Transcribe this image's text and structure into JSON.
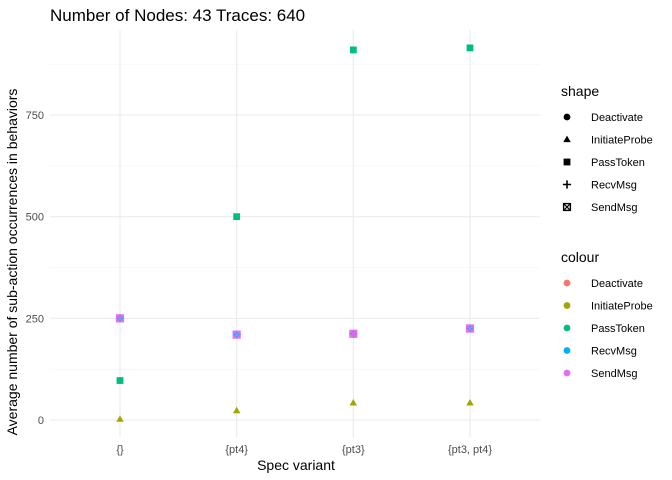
{
  "chart_data": {
    "type": "scatter",
    "title": "Number of Nodes:  43  Traces: 640",
    "xlabel": "Spec variant",
    "ylabel": "Average number of sub-action occurrences in behaviors",
    "categories": [
      "{}",
      "{pt4}",
      "{pt3}",
      "{pt3, pt4}"
    ],
    "ylim": [
      -45,
      950
    ],
    "yticks": [
      0,
      250,
      500,
      750
    ],
    "grid": true,
    "legend_position": "right",
    "series": [
      {
        "name": "Deactivate",
        "shape": "circle",
        "color": "#F8766D",
        "values": [
          250,
          210,
          212,
          225
        ]
      },
      {
        "name": "InitiateProbe",
        "shape": "triangle",
        "color": "#A3A500",
        "values": [
          2,
          23,
          42,
          42
        ]
      },
      {
        "name": "PassToken",
        "shape": "square",
        "color": "#00BF7D",
        "values": [
          97,
          500,
          910,
          915
        ]
      },
      {
        "name": "RecvMsg",
        "shape": "plus",
        "color": "#00B0F6",
        "values": [
          250,
          210,
          212,
          225
        ]
      },
      {
        "name": "SendMsg",
        "shape": "boxcross",
        "color": "#E76BF3",
        "values": [
          250,
          210,
          212,
          225
        ]
      }
    ],
    "legends": [
      {
        "title": "shape",
        "items": [
          {
            "label": "Deactivate",
            "shape": "circle"
          },
          {
            "label": "InitiateProbe",
            "shape": "triangle"
          },
          {
            "label": "PassToken",
            "shape": "square"
          },
          {
            "label": "RecvMsg",
            "shape": "plus"
          },
          {
            "label": "SendMsg",
            "shape": "boxcross"
          }
        ]
      },
      {
        "title": "colour",
        "items": [
          {
            "label": "Deactivate",
            "color": "#F8766D"
          },
          {
            "label": "InitiateProbe",
            "color": "#A3A500"
          },
          {
            "label": "PassToken",
            "color": "#00BF7D"
          },
          {
            "label": "RecvMsg",
            "color": "#00B0F6"
          },
          {
            "label": "SendMsg",
            "color": "#E76BF3"
          }
        ]
      }
    ]
  }
}
